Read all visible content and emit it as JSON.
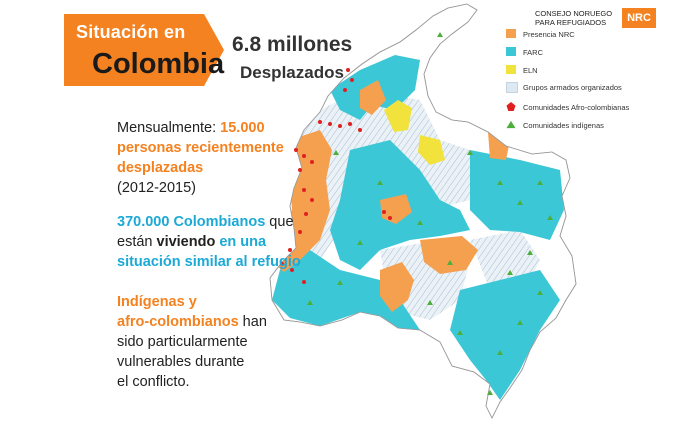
{
  "title": {
    "line1": "Situación en",
    "line2": "Colombia"
  },
  "headline": {
    "number": "6.8 millones",
    "label": "Desplazados"
  },
  "org": {
    "name_line1": "CONSEJO NORUEGO",
    "name_line2": "PARA REFUGIADOS",
    "abbr": "NRC"
  },
  "legend": {
    "items": [
      {
        "label": "Presencia NRC",
        "color": "#f5a04f",
        "marker": "square"
      },
      {
        "label": "FARC",
        "color": "#3cc7d6",
        "marker": "square"
      },
      {
        "label": "ELN",
        "color": "#f2e23c",
        "marker": "square"
      },
      {
        "label": "Grupos armados organizados",
        "color": "#dde9f2",
        "marker": "square"
      },
      {
        "label": "Comunidades Afro-colombianas",
        "color": "#e02020",
        "marker": "pentagon"
      },
      {
        "label": "Comunidades indígenas",
        "color": "#4caf3a",
        "marker": "triangle"
      }
    ]
  },
  "fact1": {
    "a": "Mensualmente: ",
    "b": "15.000",
    "c": "personas recientemente",
    "d": "desplazadas",
    "e": "(2012-2015)"
  },
  "fact2": {
    "a": "370.000 Colombianos",
    "b": " que",
    "c": "están ",
    "d": "viviendo",
    "e": " en una",
    "f": "situación similar al refugio"
  },
  "fact3": {
    "a": "Indígenas y",
    "b": "afro-colombianos",
    "c": " han",
    "d": "sido particularmente",
    "e": "vulnerables durante",
    "f": "el conflicto."
  },
  "colors": {
    "orange": "#f58220",
    "cyan": "#1ba9d6",
    "farc": "#3cc7d6",
    "nrc": "#f5a04f",
    "eln": "#f2e23c",
    "afro": "#e02020",
    "indig": "#4caf3a"
  }
}
